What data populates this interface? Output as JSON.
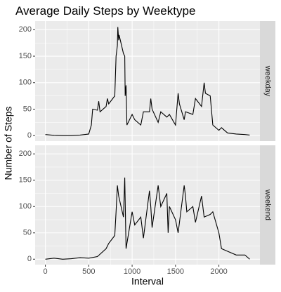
{
  "chart_data": {
    "type": "line",
    "title": "Average Daily Steps by Weektype",
    "xlabel": "Interval",
    "ylabel": "Number of Steps",
    "xlim": [
      -118,
      2473
    ],
    "xticks": [
      0,
      500,
      1000,
      1500,
      2000
    ],
    "ylim": [
      -10.3,
      216.3
    ],
    "yticks": [
      0,
      50,
      100,
      150,
      200
    ],
    "grid": true,
    "series": [
      {
        "name": "weekday",
        "color": "#000000",
        "x": [
          0,
          100,
          200,
          300,
          400,
          500,
          530,
          545,
          600,
          615,
          630,
          700,
          715,
          730,
          800,
          815,
          830,
          835,
          845,
          850,
          900,
          915,
          920,
          930,
          940,
          1000,
          1030,
          1100,
          1130,
          1200,
          1215,
          1230,
          1300,
          1330,
          1400,
          1430,
          1500,
          1530,
          1545,
          1600,
          1615,
          1700,
          1730,
          1800,
          1830,
          1845,
          1900,
          1930,
          2000,
          2030,
          2100,
          2200,
          2300,
          2355
        ],
        "values": [
          2,
          0.5,
          0,
          0,
          1,
          3,
          20,
          50,
          48,
          65,
          45,
          55,
          70,
          60,
          75,
          150,
          170,
          205,
          180,
          190,
          155,
          150,
          75,
          95,
          20,
          40,
          30,
          20,
          45,
          45,
          70,
          50,
          25,
          45,
          35,
          40,
          20,
          80,
          60,
          30,
          45,
          40,
          70,
          55,
          100,
          80,
          75,
          20,
          10,
          15,
          5,
          3,
          2,
          1
        ]
      },
      {
        "name": "weekend",
        "color": "#000000",
        "x": [
          0,
          100,
          200,
          300,
          400,
          500,
          600,
          700,
          730,
          800,
          815,
          830,
          845,
          900,
          915,
          930,
          1000,
          1030,
          1100,
          1130,
          1200,
          1215,
          1230,
          1300,
          1330,
          1400,
          1415,
          1430,
          1500,
          1530,
          1600,
          1615,
          1630,
          1700,
          1730,
          1800,
          1830,
          1900,
          1930,
          2000,
          2030,
          2100,
          2200,
          2300,
          2355
        ],
        "values": [
          0,
          2,
          0,
          1,
          3,
          2,
          5,
          20,
          30,
          45,
          90,
          140,
          120,
          80,
          155,
          20,
          90,
          65,
          80,
          40,
          130,
          100,
          60,
          140,
          100,
          125,
          50,
          100,
          75,
          50,
          140,
          120,
          90,
          100,
          70,
          120,
          80,
          85,
          90,
          50,
          20,
          15,
          8,
          8,
          0
        ]
      }
    ]
  }
}
